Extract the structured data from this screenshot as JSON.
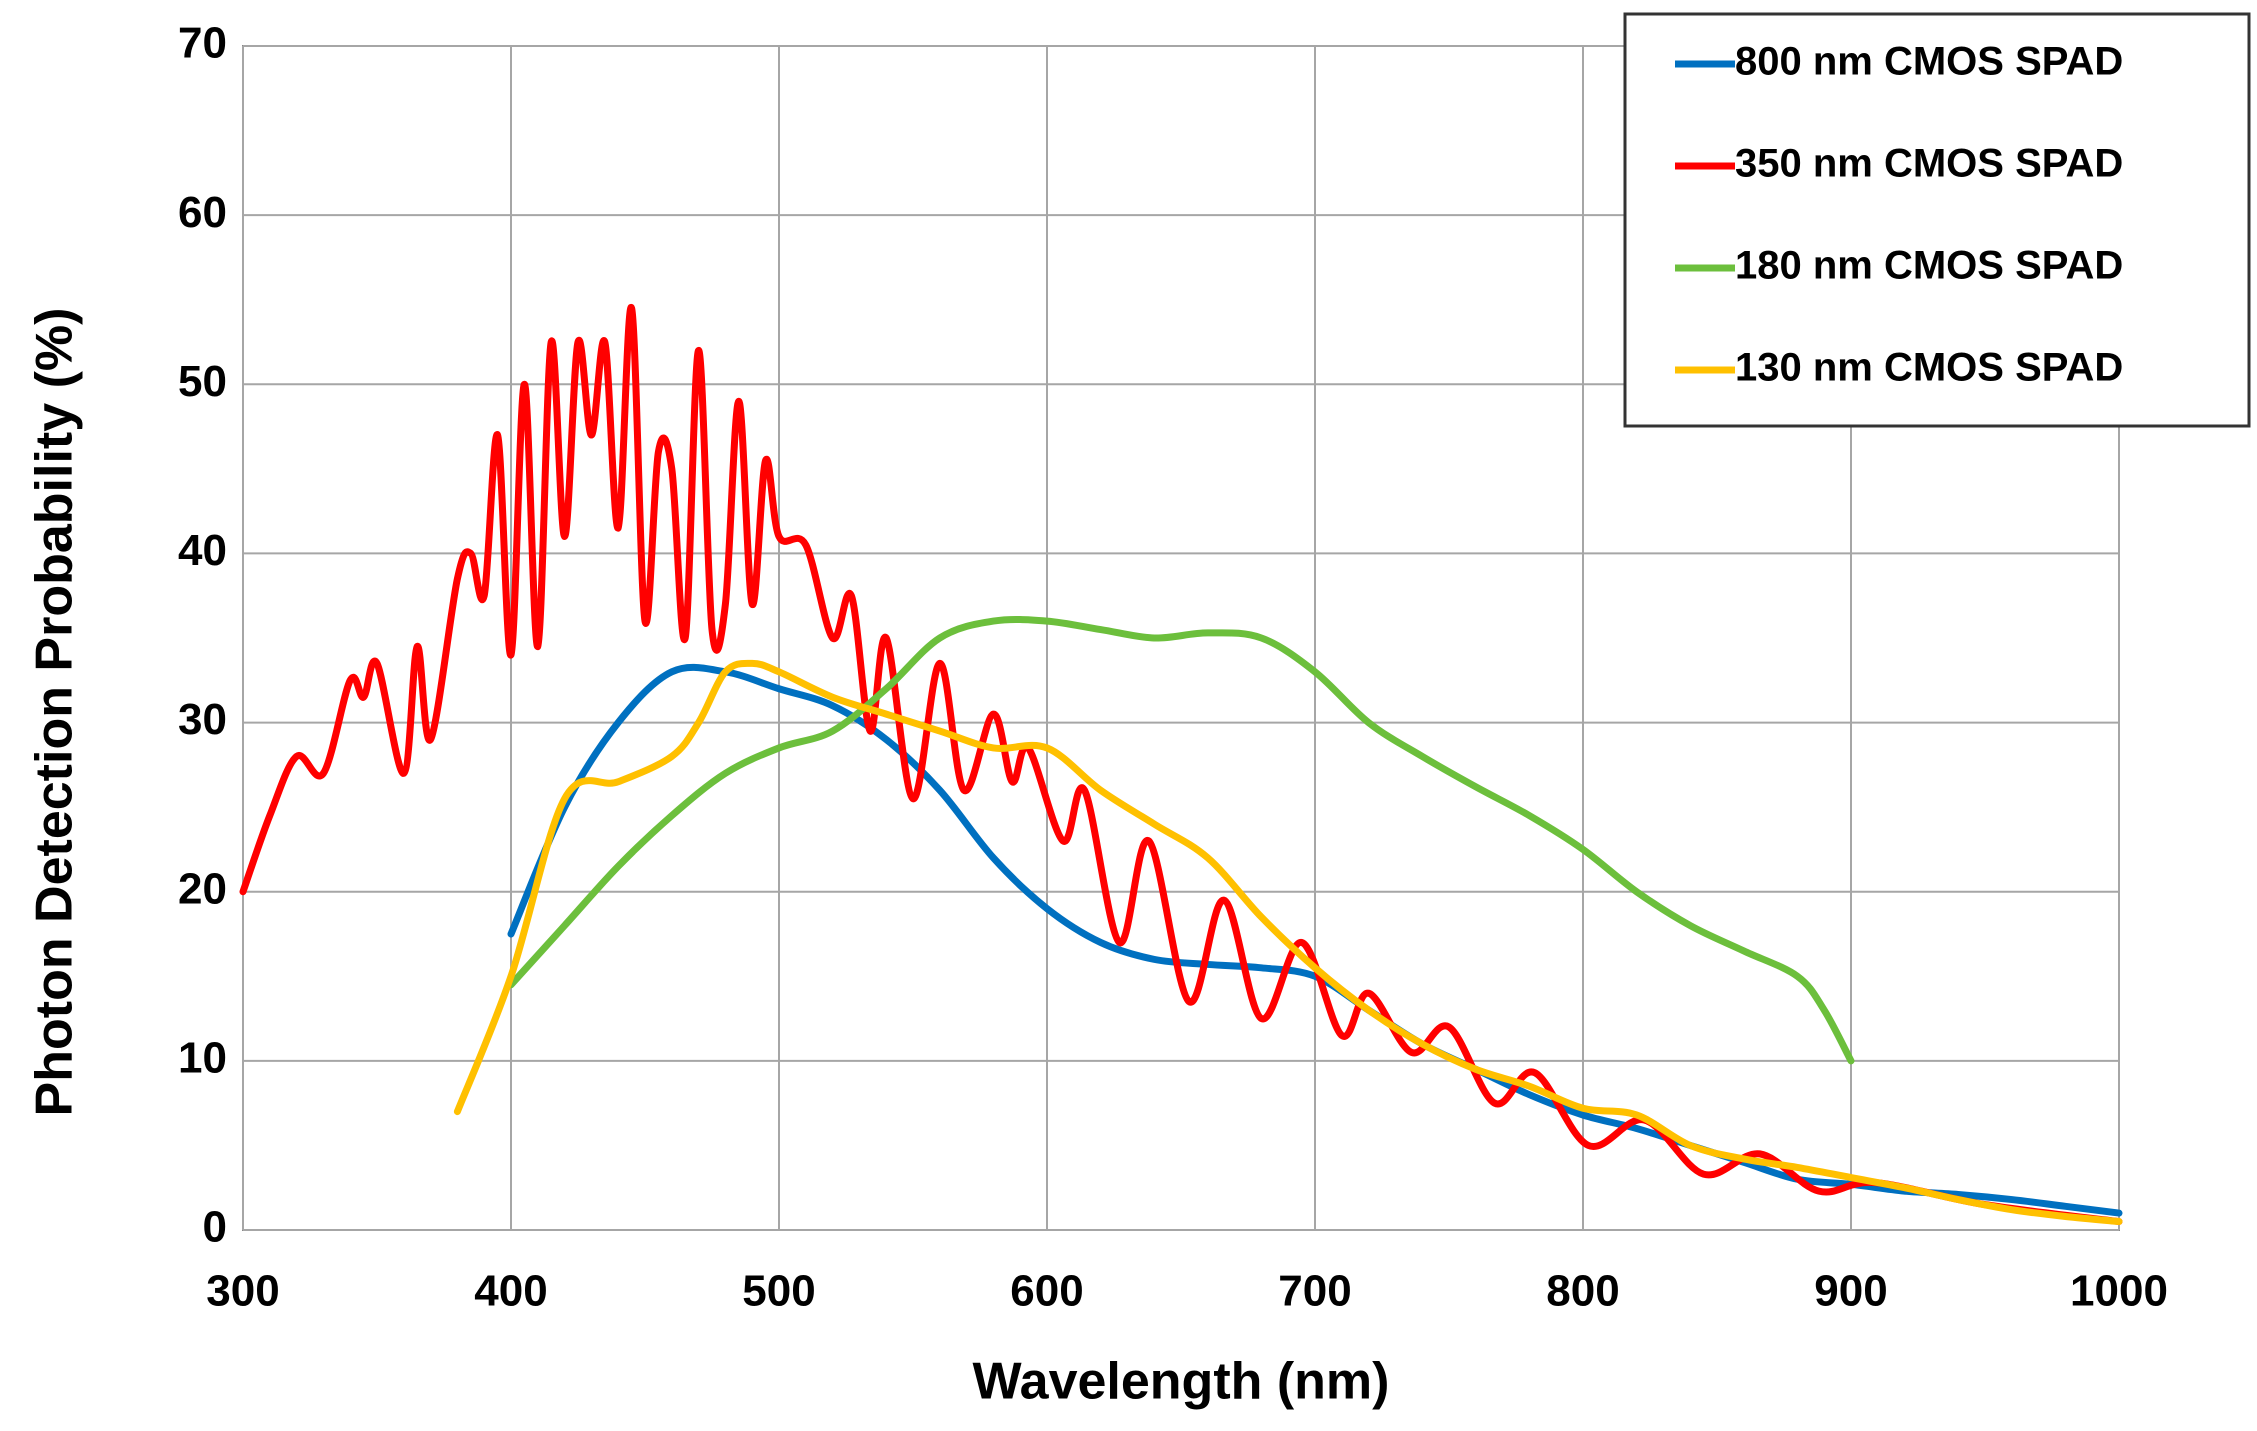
{
  "chart_data": {
    "type": "line",
    "x_label": "Wavelength (nm)",
    "y_label": "Photon Detection Probability (%)",
    "xlim": [
      300,
      1000
    ],
    "xticks": [
      300,
      400,
      500,
      600,
      700,
      800,
      900,
      1000
    ],
    "ylim": [
      0,
      70
    ],
    "yticks": [
      0,
      10,
      20,
      30,
      40,
      50,
      60,
      70
    ],
    "grid": true,
    "legend": "upper right",
    "series": [
      {
        "name": "800 nm CMOS SPAD",
        "color": "#0070c0",
        "x": [
          400,
          420,
          440,
          460,
          480,
          500,
          520,
          540,
          560,
          580,
          600,
          620,
          640,
          660,
          680,
          700,
          720,
          740,
          760,
          780,
          800,
          820,
          840,
          860,
          880,
          900,
          920,
          940,
          960,
          980,
          1000
        ],
        "values": [
          17.5,
          25,
          30,
          33,
          33,
          32,
          31,
          29,
          26,
          22,
          19,
          17,
          16,
          15.7,
          15.5,
          15,
          13,
          11,
          9.5,
          8,
          6.8,
          6,
          5,
          4,
          3,
          2.7,
          2.3,
          2.1,
          1.8,
          1.4,
          1
        ]
      },
      {
        "name": "350 nm CMOS SPAD",
        "color": "#ff0000",
        "x": [
          300,
          310,
          320,
          330,
          340,
          345,
          350,
          360,
          365,
          370,
          380,
          385,
          390,
          395,
          400,
          405,
          410,
          415,
          420,
          425,
          430,
          435,
          440,
          445,
          450,
          455,
          460,
          465,
          470,
          475,
          480,
          485,
          490,
          495,
          500,
          510,
          520,
          527,
          534,
          540,
          550,
          560,
          569,
          580,
          587,
          593,
          606,
          614,
          627,
          638,
          653,
          666,
          680,
          695,
          710,
          720,
          736,
          750,
          767,
          782,
          802,
          823,
          845,
          866,
          888,
          909,
          950,
          1000
        ],
        "values": [
          20,
          24.5,
          28,
          27,
          32.5,
          31.5,
          33.5,
          27,
          34.5,
          29,
          38.5,
          40,
          37.5,
          47,
          34,
          50,
          34.5,
          52.5,
          41,
          52.5,
          47,
          52.5,
          41.5,
          54.5,
          36,
          46,
          45,
          35,
          52,
          35.5,
          37,
          49,
          37,
          45.5,
          41,
          40.5,
          35,
          37.5,
          29.5,
          35,
          25.5,
          33.5,
          26,
          30.5,
          26.5,
          28.5,
          23,
          26,
          17,
          23,
          13.5,
          19.5,
          12.5,
          17,
          11.5,
          14,
          10.5,
          12,
          7.5,
          9.3,
          5,
          6.5,
          3.3,
          4.5,
          2.3,
          2.8,
          1.5,
          0.5
        ]
      },
      {
        "name": "180 nm CMOS SPAD",
        "color": "#6cbf3c",
        "x": [
          400,
          420,
          440,
          460,
          480,
          500,
          520,
          540,
          560,
          580,
          600,
          620,
          640,
          660,
          680,
          700,
          720,
          740,
          760,
          780,
          800,
          820,
          840,
          860,
          880,
          890,
          900
        ],
        "values": [
          14.5,
          18,
          21.5,
          24.5,
          27,
          28.5,
          29.5,
          32,
          35,
          36,
          36,
          35.5,
          35,
          35.3,
          35,
          33,
          30,
          28,
          26.2,
          24.5,
          22.5,
          20,
          18,
          16.5,
          15,
          13,
          10
        ]
      },
      {
        "name": "130 nm CMOS SPAD",
        "color": "#ffc000",
        "x": [
          380,
          400,
          420,
          440,
          460,
          470,
          480,
          490,
          500,
          520,
          540,
          560,
          580,
          600,
          620,
          640,
          660,
          680,
          700,
          720,
          740,
          760,
          780,
          800,
          820,
          840,
          860,
          880,
          900,
          920,
          940,
          960,
          980,
          1000
        ],
        "values": [
          7,
          15,
          25.5,
          26.5,
          28,
          30,
          33,
          33.5,
          33,
          31.5,
          30.5,
          29.5,
          28.5,
          28.5,
          26,
          24,
          22,
          18.5,
          15.5,
          13,
          11,
          9.5,
          8.5,
          7.2,
          6.8,
          5,
          4.2,
          3.7,
          3.1,
          2.5,
          1.8,
          1.2,
          0.8,
          0.5
        ]
      }
    ]
  }
}
